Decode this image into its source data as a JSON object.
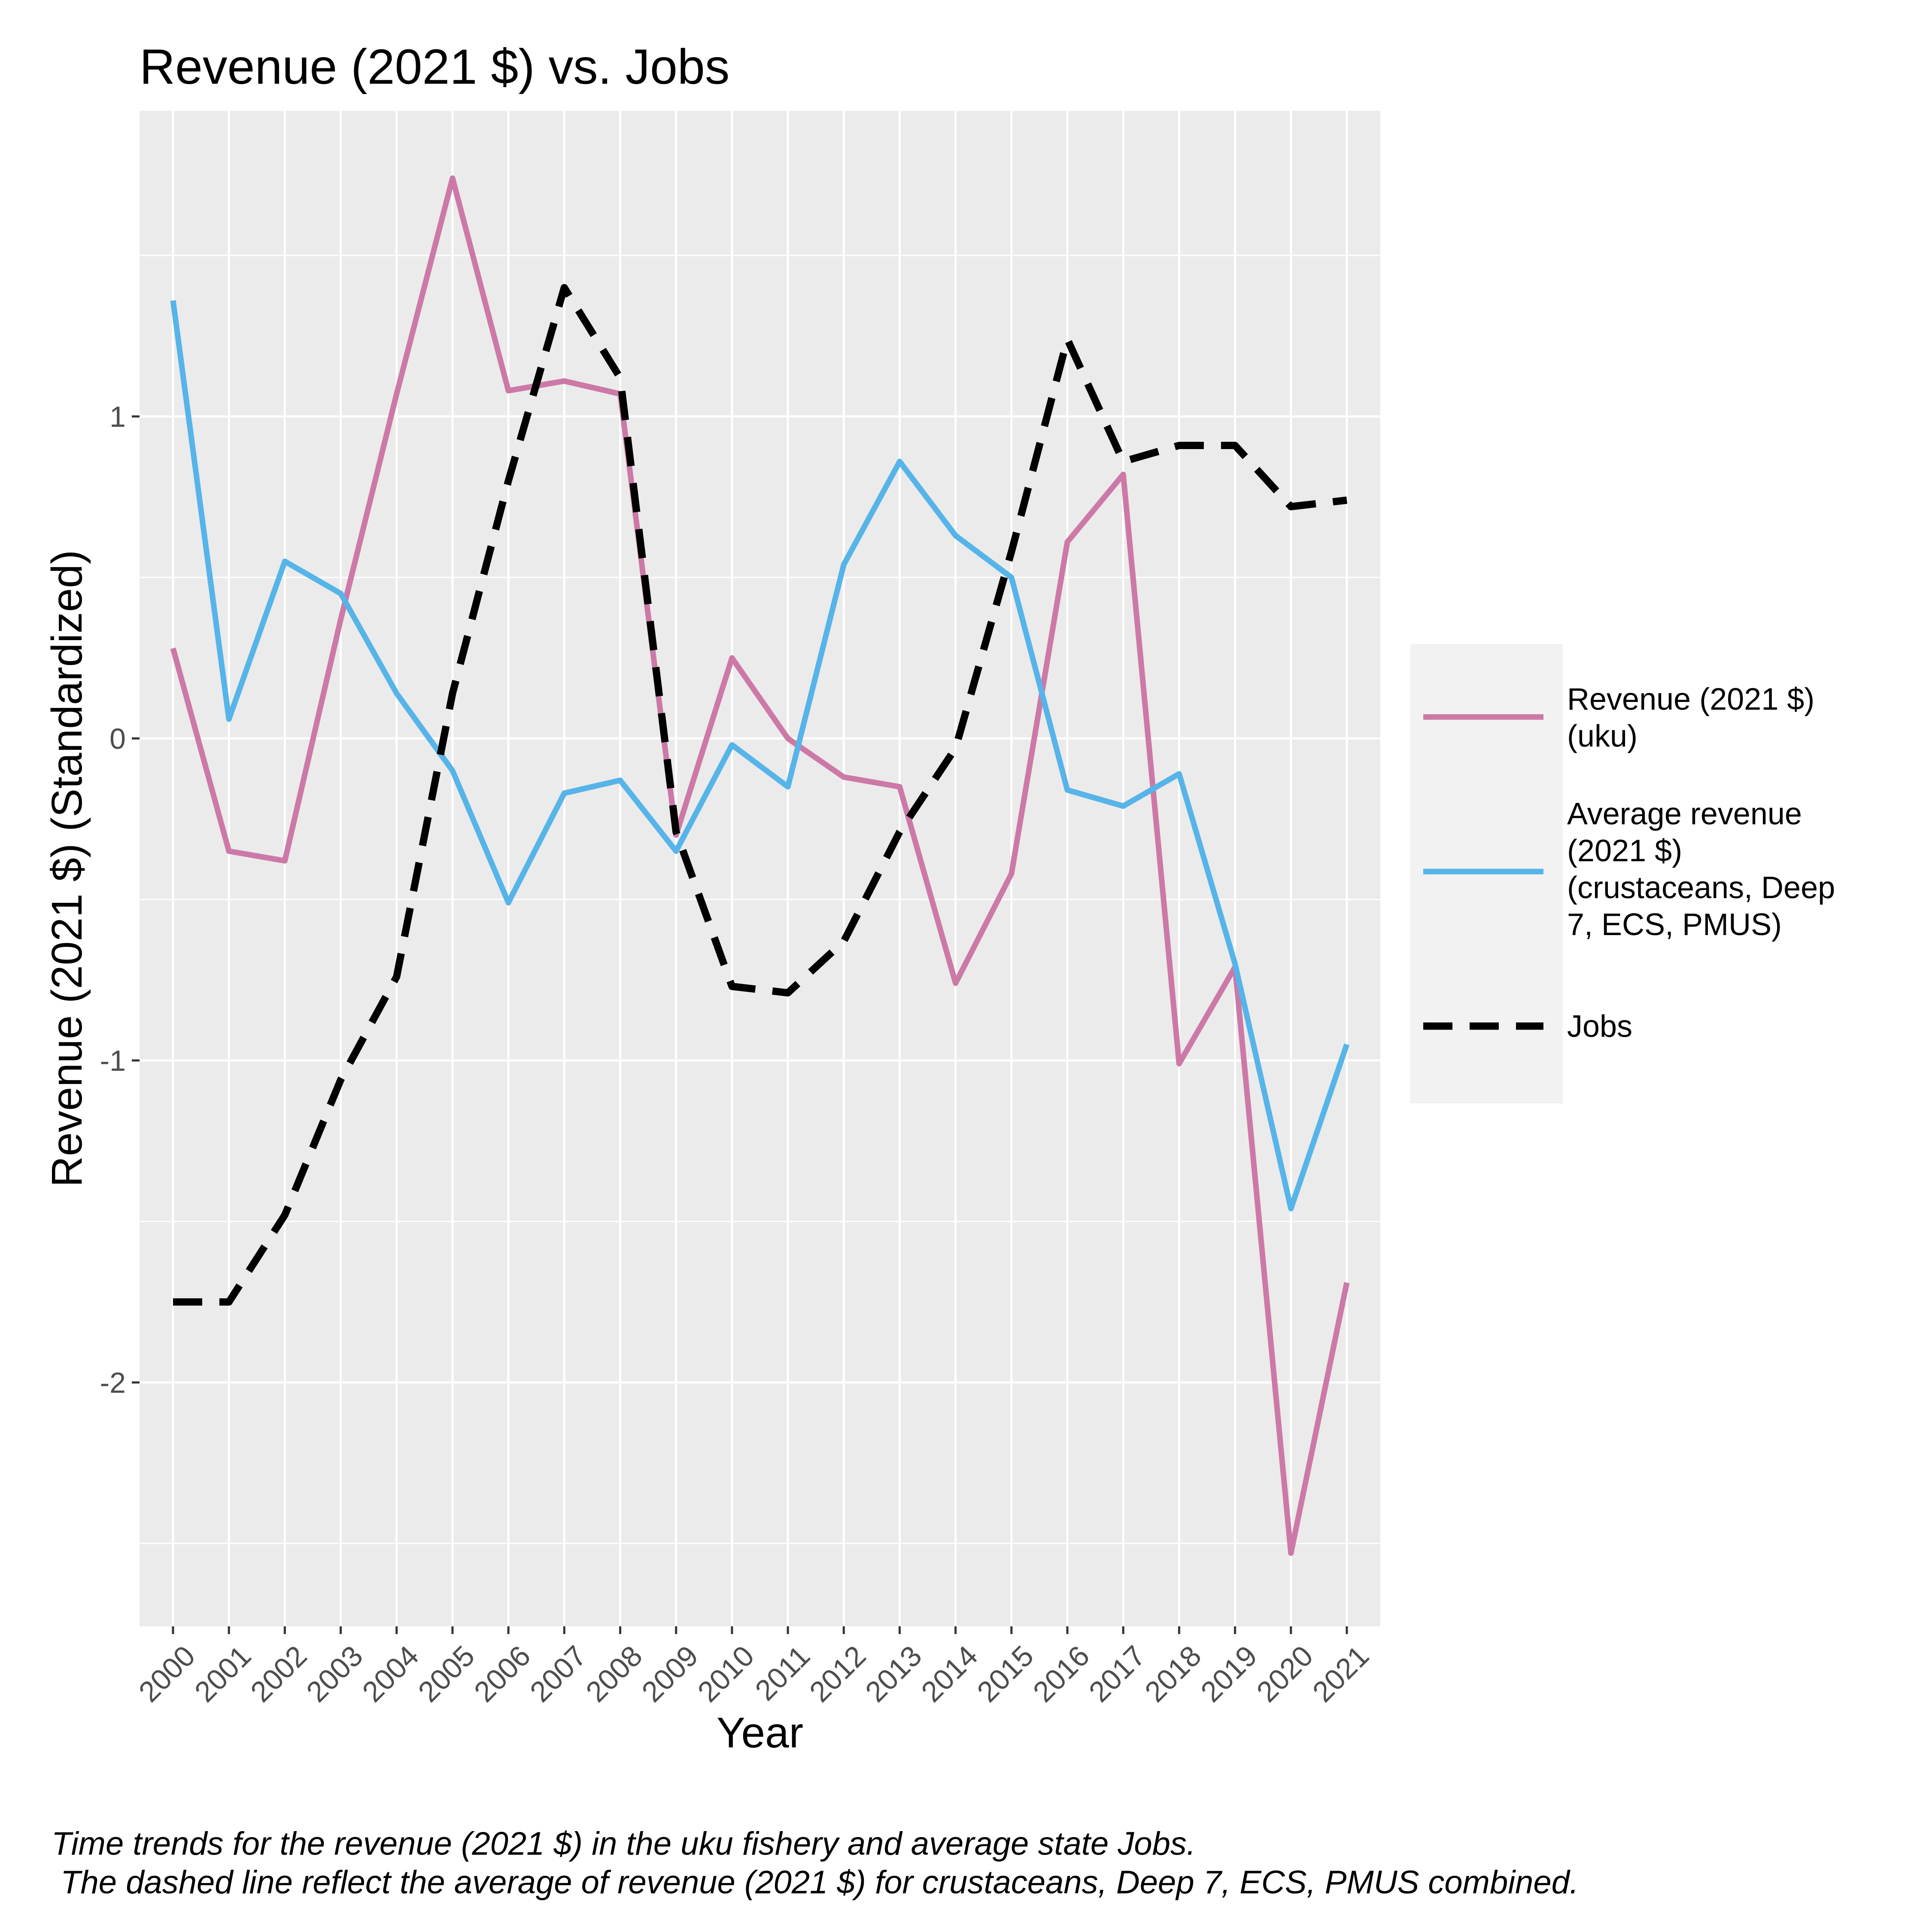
{
  "chart_data": {
    "type": "line",
    "title": "Revenue (2021 $) vs. Jobs",
    "xlabel": "Year",
    "ylabel": "Revenue (2021 $) (Standardized)",
    "categories": [
      "2000",
      "2001",
      "2002",
      "2003",
      "2004",
      "2005",
      "2006",
      "2007",
      "2008",
      "2009",
      "2010",
      "2011",
      "2012",
      "2013",
      "2014",
      "2015",
      "2016",
      "2017",
      "2018",
      "2019",
      "2020",
      "2021"
    ],
    "yticks": [
      1,
      0,
      -1,
      -2
    ],
    "ylim": [
      -2.75,
      1.95
    ],
    "grid": true,
    "legend_position": "right",
    "series": [
      {
        "name": "Revenue (2021 $)\n(uku)",
        "legend_lines": [
          "Revenue (2021 $)",
          "(uku)"
        ],
        "color": "#CC79A7",
        "dash": "solid",
        "values": [
          0.28,
          -0.35,
          -0.38,
          0.37,
          1.07,
          1.74,
          1.08,
          1.11,
          1.07,
          -0.3,
          0.25,
          0.0,
          -0.12,
          -0.15,
          -0.76,
          -0.42,
          0.61,
          0.82,
          -1.01,
          -0.71,
          -2.53,
          -1.69
        ]
      },
      {
        "name": "Average revenue\n(2021 $)\n(crustaceans, Deep\n7, ECS, PMUS)",
        "legend_lines": [
          "Average revenue",
          "(2021 $)",
          "(crustaceans, Deep",
          "7, ECS, PMUS)"
        ],
        "color": "#56B4E9",
        "dash": "solid",
        "values": [
          1.36,
          0.06,
          0.55,
          0.45,
          0.14,
          -0.1,
          -0.51,
          -0.17,
          -0.13,
          -0.35,
          -0.02,
          -0.15,
          0.54,
          0.86,
          0.63,
          0.5,
          -0.16,
          -0.21,
          -0.11,
          -0.7,
          -1.46,
          -0.95
        ]
      },
      {
        "name": "Jobs",
        "legend_lines": [
          "Jobs"
        ],
        "color": "#000000",
        "dash": "dashed",
        "values": [
          -1.75,
          -1.75,
          -1.48,
          -1.06,
          -0.74,
          0.14,
          0.8,
          1.4,
          1.12,
          -0.29,
          -0.77,
          -0.79,
          -0.63,
          -0.29,
          -0.03,
          0.58,
          1.24,
          0.86,
          0.91,
          0.91,
          0.72,
          0.74
        ]
      }
    ]
  },
  "caption": {
    "line1": "Time trends for the revenue (2021 $) in the uku fishery and average state Jobs.",
    "line2": " The dashed line reflect the average of revenue (2021 $) for crustaceans, Deep 7, ECS, PMUS combined."
  }
}
